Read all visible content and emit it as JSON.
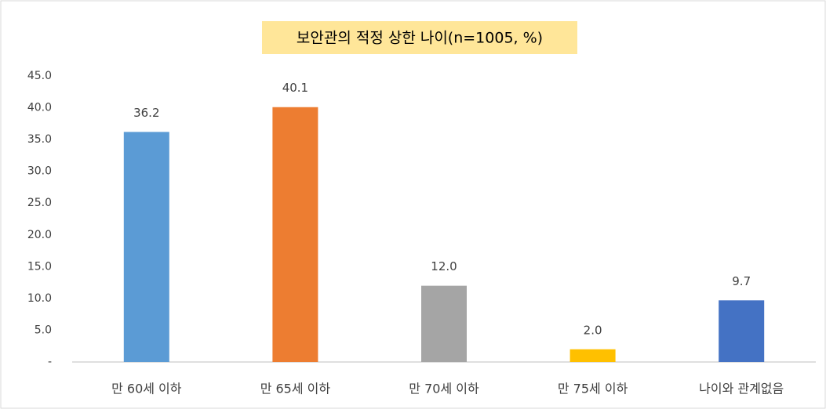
{
  "chart_data": {
    "type": "bar",
    "title": "보안관의 적정 상한 나이(n=1005, %)",
    "categories": [
      "만 60세 이하",
      "만 65세 이하",
      "만 70세 이하",
      "만 75세 이하",
      "나이와 관계없음"
    ],
    "values": [
      36.2,
      40.1,
      12.0,
      2.0,
      9.7
    ],
    "value_labels": [
      "36.2",
      "40.1",
      "12.0",
      "2.0",
      "9.7"
    ],
    "colors": [
      "#5b9bd5",
      "#ed7d31",
      "#a5a5a5",
      "#ffc000",
      "#4472c4"
    ],
    "ylim": [
      0,
      45
    ],
    "yticks": [
      {
        "value": 0,
        "label": "-"
      },
      {
        "value": 5,
        "label": "5.0"
      },
      {
        "value": 10,
        "label": "10.0"
      },
      {
        "value": 15,
        "label": "15.0"
      },
      {
        "value": 20,
        "label": "20.0"
      },
      {
        "value": 25,
        "label": "25.0"
      },
      {
        "value": 30,
        "label": "30.0"
      },
      {
        "value": 35,
        "label": "35.0"
      },
      {
        "value": 40,
        "label": "40.0"
      },
      {
        "value": 45,
        "label": "45.0"
      }
    ],
    "grid": false
  }
}
